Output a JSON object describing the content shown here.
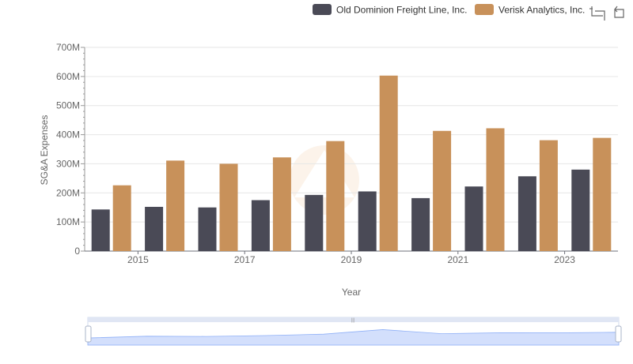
{
  "chart_data": {
    "type": "bar",
    "title": "",
    "xlabel": "Year",
    "ylabel": "SG&A Expenses",
    "x": [
      2014,
      2015,
      2016,
      2017,
      2018,
      2019,
      2020,
      2021,
      2022,
      2023
    ],
    "x_tick_labels": [
      "2015",
      "2017",
      "2019",
      "2021",
      "2023"
    ],
    "x_tick_values": [
      2015,
      2017,
      2019,
      2021,
      2023
    ],
    "y_tick_labels": [
      "0",
      "100M",
      "200M",
      "300M",
      "400M",
      "500M",
      "600M",
      "700M"
    ],
    "y_tick_values": [
      0,
      100000000,
      200000000,
      300000000,
      400000000,
      500000000,
      600000000,
      700000000
    ],
    "ylim": [
      0,
      700000000
    ],
    "grid": true,
    "legend_position": "top-right",
    "series": [
      {
        "name": "Old Dominion Freight Line, Inc.",
        "color": "#4a4a56",
        "values": [
          143000000,
          152000000,
          150000000,
          175000000,
          193000000,
          205000000,
          182000000,
          222000000,
          257000000,
          280000000
        ]
      },
      {
        "name": "Verisk Analytics, Inc.",
        "color": "#c8915a",
        "values": [
          226000000,
          311000000,
          300000000,
          322000000,
          378000000,
          603000000,
          413000000,
          422000000,
          381000000,
          389000000
        ]
      }
    ]
  },
  "toolbar": {
    "zoom_icon": "crop-zoom-icon",
    "restore_icon": "restore-icon"
  },
  "data_zoom": {
    "range": [
      0,
      100
    ],
    "handle_color": "#e0e6f4",
    "fill_color": "#d3dffc"
  }
}
